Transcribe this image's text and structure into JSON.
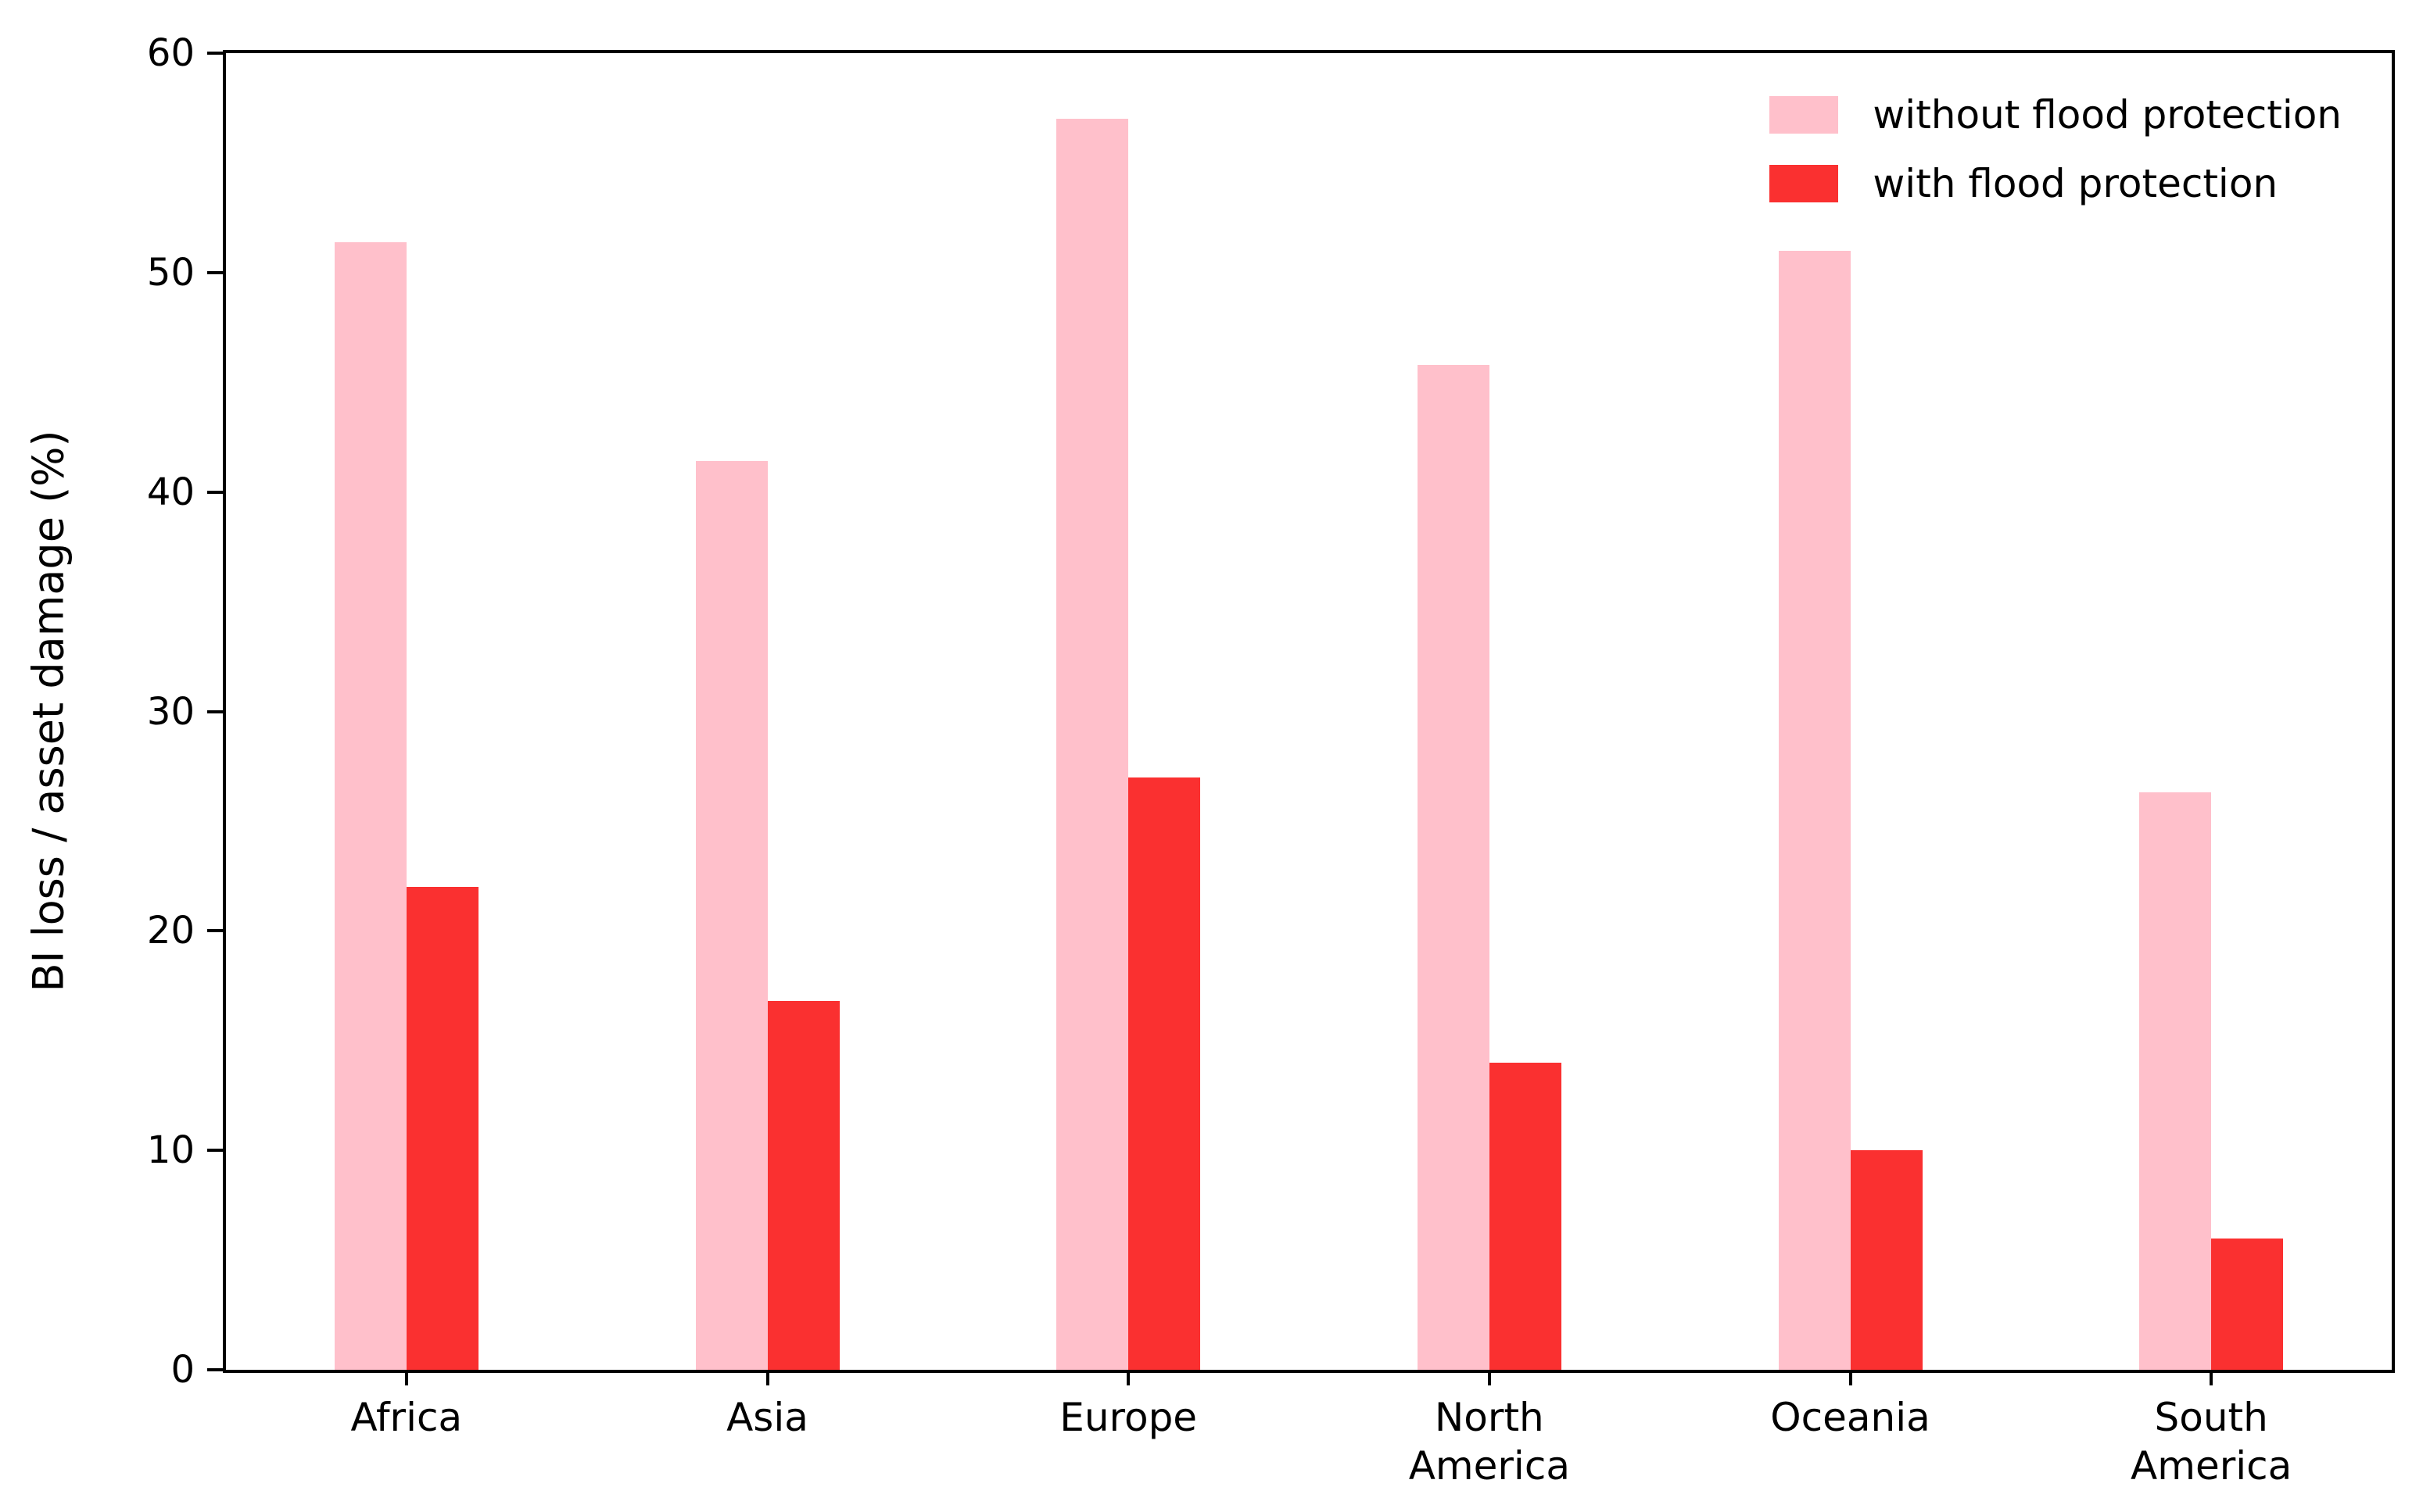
{
  "chart_data": {
    "type": "bar",
    "title": "",
    "xlabel": "",
    "ylabel": "BI loss / asset damage (%)",
    "ylim": [
      0,
      60
    ],
    "yticks": [
      0,
      10,
      20,
      30,
      40,
      50,
      60
    ],
    "grid": false,
    "legend_position": "upper right",
    "categories": [
      "Africa",
      "Asia",
      "Europe",
      "North America",
      "Oceania",
      "South America"
    ],
    "category_display_lines": [
      [
        "Africa"
      ],
      [
        "Asia"
      ],
      [
        "Europe"
      ],
      [
        "North",
        "America"
      ],
      [
        "Oceania"
      ],
      [
        "South",
        "America"
      ]
    ],
    "series": [
      {
        "name": "without flood protection",
        "color": "#FFC0CB",
        "values": [
          51.4,
          41.4,
          57.0,
          45.8,
          51.0,
          26.3
        ]
      },
      {
        "name": "with flood protection",
        "color": "#FA3030",
        "values": [
          22.0,
          16.8,
          27.0,
          14.0,
          10.0,
          6.0
        ]
      }
    ]
  }
}
